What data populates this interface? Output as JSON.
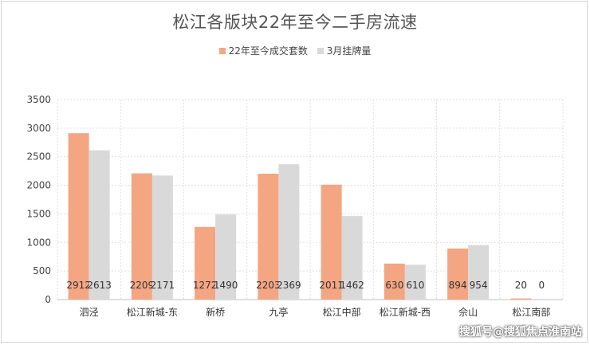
{
  "chart_data": {
    "type": "bar",
    "title": "松江各版块22年至今二手房流速",
    "categories": [
      "泗泾",
      "松江新城-东",
      "新桥",
      "九亭",
      "松江中部",
      "松江新城-西",
      "佘山",
      "松江南部"
    ],
    "series": [
      {
        "name": "22年至今成交套数",
        "values": [
          2912,
          2209,
          1272,
          2203,
          2011,
          630,
          894,
          20
        ],
        "color": "#f4a582"
      },
      {
        "name": "3月挂牌量",
        "values": [
          2613,
          2171,
          1490,
          2369,
          1462,
          610,
          954,
          0
        ],
        "color": "#d9d9d9"
      }
    ],
    "ylim": [
      0,
      3500
    ],
    "yticks": [
      0,
      500,
      1000,
      1500,
      2000,
      2500,
      3000,
      3500
    ],
    "grid": true,
    "legend_position": "top-center"
  },
  "watermark": "搜狐号@搜狐焦点淮南站"
}
